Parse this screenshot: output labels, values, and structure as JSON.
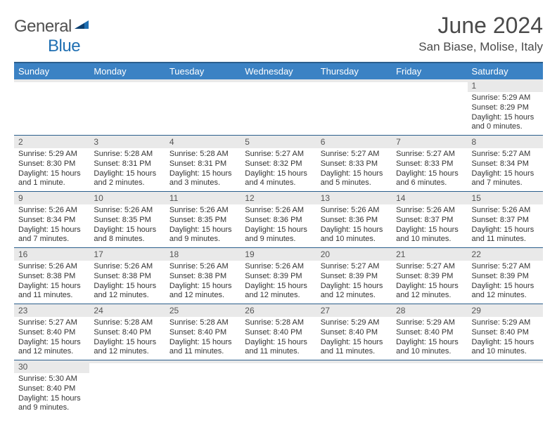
{
  "logo": {
    "text1": "General",
    "text2": "Blue"
  },
  "header": {
    "month_title": "June 2024",
    "location": "San Biase, Molise, Italy"
  },
  "colors": {
    "header_bg": "#3b82c4",
    "header_border": "#2b5e8c",
    "daynum_bg": "#e9e9e9",
    "page_bg": "#ffffff"
  },
  "daynames": [
    "Sunday",
    "Monday",
    "Tuesday",
    "Wednesday",
    "Thursday",
    "Friday",
    "Saturday"
  ],
  "weeks": [
    [
      {
        "empty": true
      },
      {
        "empty": true
      },
      {
        "empty": true
      },
      {
        "empty": true
      },
      {
        "empty": true
      },
      {
        "empty": true
      },
      {
        "day": "1",
        "sunrise": "Sunrise: 5:29 AM",
        "sunset": "Sunset: 8:29 PM",
        "daylight1": "Daylight: 15 hours",
        "daylight2": "and 0 minutes."
      }
    ],
    [
      {
        "day": "2",
        "sunrise": "Sunrise: 5:29 AM",
        "sunset": "Sunset: 8:30 PM",
        "daylight1": "Daylight: 15 hours",
        "daylight2": "and 1 minute."
      },
      {
        "day": "3",
        "sunrise": "Sunrise: 5:28 AM",
        "sunset": "Sunset: 8:31 PM",
        "daylight1": "Daylight: 15 hours",
        "daylight2": "and 2 minutes."
      },
      {
        "day": "4",
        "sunrise": "Sunrise: 5:28 AM",
        "sunset": "Sunset: 8:31 PM",
        "daylight1": "Daylight: 15 hours",
        "daylight2": "and 3 minutes."
      },
      {
        "day": "5",
        "sunrise": "Sunrise: 5:27 AM",
        "sunset": "Sunset: 8:32 PM",
        "daylight1": "Daylight: 15 hours",
        "daylight2": "and 4 minutes."
      },
      {
        "day": "6",
        "sunrise": "Sunrise: 5:27 AM",
        "sunset": "Sunset: 8:33 PM",
        "daylight1": "Daylight: 15 hours",
        "daylight2": "and 5 minutes."
      },
      {
        "day": "7",
        "sunrise": "Sunrise: 5:27 AM",
        "sunset": "Sunset: 8:33 PM",
        "daylight1": "Daylight: 15 hours",
        "daylight2": "and 6 minutes."
      },
      {
        "day": "8",
        "sunrise": "Sunrise: 5:27 AM",
        "sunset": "Sunset: 8:34 PM",
        "daylight1": "Daylight: 15 hours",
        "daylight2": "and 7 minutes."
      }
    ],
    [
      {
        "day": "9",
        "sunrise": "Sunrise: 5:26 AM",
        "sunset": "Sunset: 8:34 PM",
        "daylight1": "Daylight: 15 hours",
        "daylight2": "and 7 minutes."
      },
      {
        "day": "10",
        "sunrise": "Sunrise: 5:26 AM",
        "sunset": "Sunset: 8:35 PM",
        "daylight1": "Daylight: 15 hours",
        "daylight2": "and 8 minutes."
      },
      {
        "day": "11",
        "sunrise": "Sunrise: 5:26 AM",
        "sunset": "Sunset: 8:35 PM",
        "daylight1": "Daylight: 15 hours",
        "daylight2": "and 9 minutes."
      },
      {
        "day": "12",
        "sunrise": "Sunrise: 5:26 AM",
        "sunset": "Sunset: 8:36 PM",
        "daylight1": "Daylight: 15 hours",
        "daylight2": "and 9 minutes."
      },
      {
        "day": "13",
        "sunrise": "Sunrise: 5:26 AM",
        "sunset": "Sunset: 8:36 PM",
        "daylight1": "Daylight: 15 hours",
        "daylight2": "and 10 minutes."
      },
      {
        "day": "14",
        "sunrise": "Sunrise: 5:26 AM",
        "sunset": "Sunset: 8:37 PM",
        "daylight1": "Daylight: 15 hours",
        "daylight2": "and 10 minutes."
      },
      {
        "day": "15",
        "sunrise": "Sunrise: 5:26 AM",
        "sunset": "Sunset: 8:37 PM",
        "daylight1": "Daylight: 15 hours",
        "daylight2": "and 11 minutes."
      }
    ],
    [
      {
        "day": "16",
        "sunrise": "Sunrise: 5:26 AM",
        "sunset": "Sunset: 8:38 PM",
        "daylight1": "Daylight: 15 hours",
        "daylight2": "and 11 minutes."
      },
      {
        "day": "17",
        "sunrise": "Sunrise: 5:26 AM",
        "sunset": "Sunset: 8:38 PM",
        "daylight1": "Daylight: 15 hours",
        "daylight2": "and 12 minutes."
      },
      {
        "day": "18",
        "sunrise": "Sunrise: 5:26 AM",
        "sunset": "Sunset: 8:38 PM",
        "daylight1": "Daylight: 15 hours",
        "daylight2": "and 12 minutes."
      },
      {
        "day": "19",
        "sunrise": "Sunrise: 5:26 AM",
        "sunset": "Sunset: 8:39 PM",
        "daylight1": "Daylight: 15 hours",
        "daylight2": "and 12 minutes."
      },
      {
        "day": "20",
        "sunrise": "Sunrise: 5:27 AM",
        "sunset": "Sunset: 8:39 PM",
        "daylight1": "Daylight: 15 hours",
        "daylight2": "and 12 minutes."
      },
      {
        "day": "21",
        "sunrise": "Sunrise: 5:27 AM",
        "sunset": "Sunset: 8:39 PM",
        "daylight1": "Daylight: 15 hours",
        "daylight2": "and 12 minutes."
      },
      {
        "day": "22",
        "sunrise": "Sunrise: 5:27 AM",
        "sunset": "Sunset: 8:39 PM",
        "daylight1": "Daylight: 15 hours",
        "daylight2": "and 12 minutes."
      }
    ],
    [
      {
        "day": "23",
        "sunrise": "Sunrise: 5:27 AM",
        "sunset": "Sunset: 8:40 PM",
        "daylight1": "Daylight: 15 hours",
        "daylight2": "and 12 minutes."
      },
      {
        "day": "24",
        "sunrise": "Sunrise: 5:28 AM",
        "sunset": "Sunset: 8:40 PM",
        "daylight1": "Daylight: 15 hours",
        "daylight2": "and 12 minutes."
      },
      {
        "day": "25",
        "sunrise": "Sunrise: 5:28 AM",
        "sunset": "Sunset: 8:40 PM",
        "daylight1": "Daylight: 15 hours",
        "daylight2": "and 11 minutes."
      },
      {
        "day": "26",
        "sunrise": "Sunrise: 5:28 AM",
        "sunset": "Sunset: 8:40 PM",
        "daylight1": "Daylight: 15 hours",
        "daylight2": "and 11 minutes."
      },
      {
        "day": "27",
        "sunrise": "Sunrise: 5:29 AM",
        "sunset": "Sunset: 8:40 PM",
        "daylight1": "Daylight: 15 hours",
        "daylight2": "and 11 minutes."
      },
      {
        "day": "28",
        "sunrise": "Sunrise: 5:29 AM",
        "sunset": "Sunset: 8:40 PM",
        "daylight1": "Daylight: 15 hours",
        "daylight2": "and 10 minutes."
      },
      {
        "day": "29",
        "sunrise": "Sunrise: 5:29 AM",
        "sunset": "Sunset: 8:40 PM",
        "daylight1": "Daylight: 15 hours",
        "daylight2": "and 10 minutes."
      }
    ],
    [
      {
        "day": "30",
        "sunrise": "Sunrise: 5:30 AM",
        "sunset": "Sunset: 8:40 PM",
        "daylight1": "Daylight: 15 hours",
        "daylight2": "and 9 minutes."
      },
      {
        "empty": true
      },
      {
        "empty": true
      },
      {
        "empty": true
      },
      {
        "empty": true
      },
      {
        "empty": true
      },
      {
        "empty": true
      }
    ]
  ]
}
